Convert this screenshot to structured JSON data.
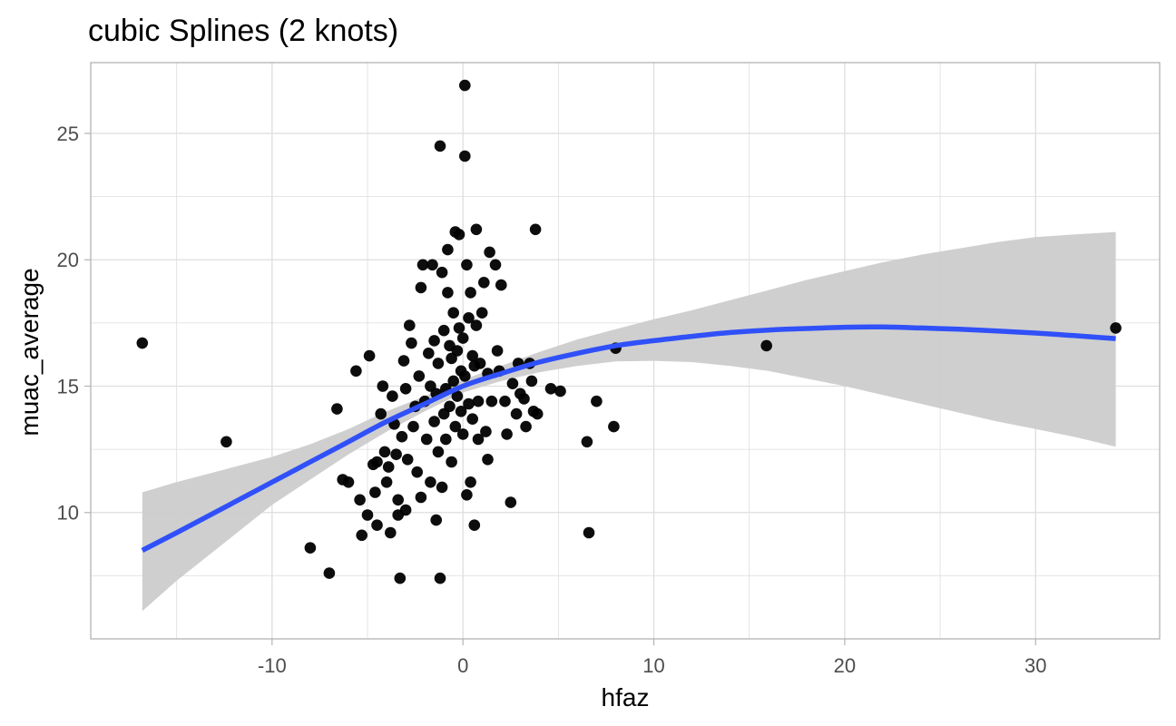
{
  "chart_data": {
    "type": "scatter",
    "title": "cubic Splines (2 knots)",
    "xlabel": "hfaz",
    "ylabel": "muac_average",
    "xlim": [
      -19.5,
      36.5
    ],
    "ylim": [
      5,
      27.8
    ],
    "x_ticks": [
      -10,
      0,
      10,
      20,
      30
    ],
    "x_tick_labels": [
      "-10",
      "0",
      "10",
      "20",
      "30"
    ],
    "y_ticks": [
      10,
      15,
      20,
      25
    ],
    "y_tick_labels": [
      "10",
      "15",
      "20",
      "25"
    ],
    "grid": true,
    "legend": "none",
    "colors": {
      "points": "#000000",
      "fit_line": "#3050f8",
      "confidence_band": "#cccccc",
      "grid": "#dedede",
      "panel_border": "#b3b3b3"
    },
    "points": [
      [
        -16.8,
        16.7
      ],
      [
        -12.4,
        12.8
      ],
      [
        -8.0,
        8.6
      ],
      [
        -7.0,
        7.6
      ],
      [
        -6.6,
        14.1
      ],
      [
        -6.3,
        11.3
      ],
      [
        -6.0,
        11.2
      ],
      [
        -5.6,
        15.6
      ],
      [
        -5.4,
        10.5
      ],
      [
        -5.3,
        9.1
      ],
      [
        -5.0,
        9.9
      ],
      [
        -4.9,
        16.2
      ],
      [
        -4.7,
        11.9
      ],
      [
        -4.6,
        10.8
      ],
      [
        -4.5,
        12.0
      ],
      [
        -4.5,
        9.5
      ],
      [
        -4.3,
        13.9
      ],
      [
        -4.2,
        15.0
      ],
      [
        -4.1,
        12.4
      ],
      [
        -4.0,
        11.2
      ],
      [
        -3.9,
        11.8
      ],
      [
        -3.8,
        9.2
      ],
      [
        -3.7,
        14.6
      ],
      [
        -3.6,
        13.5
      ],
      [
        -3.5,
        12.3
      ],
      [
        -3.4,
        9.9
      ],
      [
        -3.4,
        10.5
      ],
      [
        -3.3,
        7.4
      ],
      [
        -3.2,
        13.0
      ],
      [
        -3.1,
        16.0
      ],
      [
        -3.0,
        10.1
      ],
      [
        -3.0,
        14.9
      ],
      [
        -2.9,
        12.1
      ],
      [
        -2.8,
        17.4
      ],
      [
        -2.7,
        16.7
      ],
      [
        -2.6,
        13.4
      ],
      [
        -2.5,
        14.2
      ],
      [
        -2.4,
        11.6
      ],
      [
        -2.3,
        15.4
      ],
      [
        -2.2,
        10.6
      ],
      [
        -2.2,
        18.9
      ],
      [
        -2.1,
        19.8
      ],
      [
        -2.0,
        14.4
      ],
      [
        -1.9,
        12.9
      ],
      [
        -1.8,
        16.3
      ],
      [
        -1.7,
        11.2
      ],
      [
        -1.7,
        15.0
      ],
      [
        -1.6,
        19.8
      ],
      [
        -1.5,
        16.8
      ],
      [
        -1.5,
        13.6
      ],
      [
        -1.4,
        9.7
      ],
      [
        -1.4,
        14.7
      ],
      [
        -1.3,
        12.4
      ],
      [
        -1.3,
        15.9
      ],
      [
        -1.2,
        7.4
      ],
      [
        -1.2,
        24.5
      ],
      [
        -1.1,
        19.5
      ],
      [
        -1.1,
        11.0
      ],
      [
        -1.0,
        17.2
      ],
      [
        -1.0,
        13.9
      ],
      [
        -0.9,
        14.9
      ],
      [
        -0.9,
        12.9
      ],
      [
        -0.8,
        18.7
      ],
      [
        -0.8,
        20.4
      ],
      [
        -0.7,
        16.6
      ],
      [
        -0.7,
        14.2
      ],
      [
        -0.6,
        16.1
      ],
      [
        -0.6,
        12.0
      ],
      [
        -0.5,
        17.9
      ],
      [
        -0.5,
        15.2
      ],
      [
        -0.4,
        13.4
      ],
      [
        -0.4,
        21.1
      ],
      [
        -0.3,
        16.4
      ],
      [
        -0.3,
        14.6
      ],
      [
        -0.2,
        17.3
      ],
      [
        -0.2,
        21.0
      ],
      [
        -0.1,
        15.6
      ],
      [
        -0.1,
        14.0
      ],
      [
        0.0,
        16.9
      ],
      [
        0.0,
        13.1
      ],
      [
        0.1,
        26.9
      ],
      [
        0.1,
        24.1
      ],
      [
        0.1,
        15.4
      ],
      [
        0.2,
        19.8
      ],
      [
        0.2,
        10.7
      ],
      [
        0.3,
        17.7
      ],
      [
        0.3,
        14.3
      ],
      [
        0.4,
        18.7
      ],
      [
        0.4,
        11.2
      ],
      [
        0.5,
        16.2
      ],
      [
        0.5,
        13.7
      ],
      [
        0.6,
        15.8
      ],
      [
        0.6,
        9.5
      ],
      [
        0.7,
        17.4
      ],
      [
        0.7,
        21.2
      ],
      [
        0.8,
        14.4
      ],
      [
        0.8,
        12.9
      ],
      [
        0.9,
        15.9
      ],
      [
        1.0,
        17.9
      ],
      [
        1.1,
        19.1
      ],
      [
        1.2,
        13.2
      ],
      [
        1.3,
        15.5
      ],
      [
        1.3,
        12.1
      ],
      [
        1.4,
        20.3
      ],
      [
        1.5,
        14.4
      ],
      [
        1.7,
        19.8
      ],
      [
        1.8,
        16.4
      ],
      [
        1.9,
        15.6
      ],
      [
        2.0,
        19.0
      ],
      [
        2.2,
        14.4
      ],
      [
        2.3,
        13.1
      ],
      [
        2.5,
        10.4
      ],
      [
        2.6,
        15.1
      ],
      [
        2.8,
        13.9
      ],
      [
        2.9,
        15.9
      ],
      [
        3.0,
        14.7
      ],
      [
        3.2,
        14.5
      ],
      [
        3.3,
        13.4
      ],
      [
        3.5,
        15.9
      ],
      [
        3.6,
        15.2
      ],
      [
        3.7,
        14.0
      ],
      [
        3.8,
        21.2
      ],
      [
        3.9,
        13.9
      ],
      [
        4.6,
        14.9
      ],
      [
        5.1,
        14.8
      ],
      [
        6.5,
        12.8
      ],
      [
        6.6,
        9.2
      ],
      [
        7.0,
        14.4
      ],
      [
        7.9,
        13.4
      ],
      [
        8.0,
        16.5
      ],
      [
        15.9,
        16.6
      ],
      [
        34.2,
        17.3
      ]
    ],
    "fit_line": {
      "x": [
        -16.8,
        -15,
        -12,
        -10,
        -8,
        -6,
        -4,
        -2,
        0,
        2,
        4,
        6,
        8,
        10,
        12,
        14,
        16,
        18,
        20,
        22,
        24,
        26,
        28,
        30,
        32,
        34.2
      ],
      "y": [
        8.5,
        9.2,
        10.4,
        11.2,
        12.0,
        12.8,
        13.6,
        14.3,
        15.0,
        15.5,
        15.95,
        16.3,
        16.6,
        16.8,
        16.97,
        17.12,
        17.22,
        17.28,
        17.33,
        17.34,
        17.3,
        17.25,
        17.18,
        17.1,
        17.0,
        16.88
      ]
    },
    "confidence_band": {
      "x": [
        -16.8,
        -15,
        -12,
        -10,
        -8,
        -6,
        -4,
        -2,
        0,
        2,
        4,
        6,
        8,
        10,
        12,
        14,
        16,
        18,
        20,
        22,
        24,
        26,
        28,
        30,
        32,
        34.2
      ],
      "lower": [
        6.1,
        7.3,
        9.1,
        10.3,
        11.3,
        12.3,
        13.2,
        14.0,
        14.75,
        15.2,
        15.55,
        15.8,
        15.98,
        16.0,
        15.95,
        15.8,
        15.6,
        15.3,
        15.0,
        14.65,
        14.3,
        13.95,
        13.6,
        13.3,
        13.0,
        12.6
      ],
      "upper": [
        10.8,
        11.2,
        11.8,
        12.2,
        12.7,
        13.3,
        14.0,
        14.6,
        15.25,
        15.8,
        16.35,
        16.85,
        17.25,
        17.65,
        18.0,
        18.4,
        18.8,
        19.2,
        19.55,
        19.9,
        20.2,
        20.45,
        20.7,
        20.9,
        21.0,
        21.1
      ]
    }
  }
}
